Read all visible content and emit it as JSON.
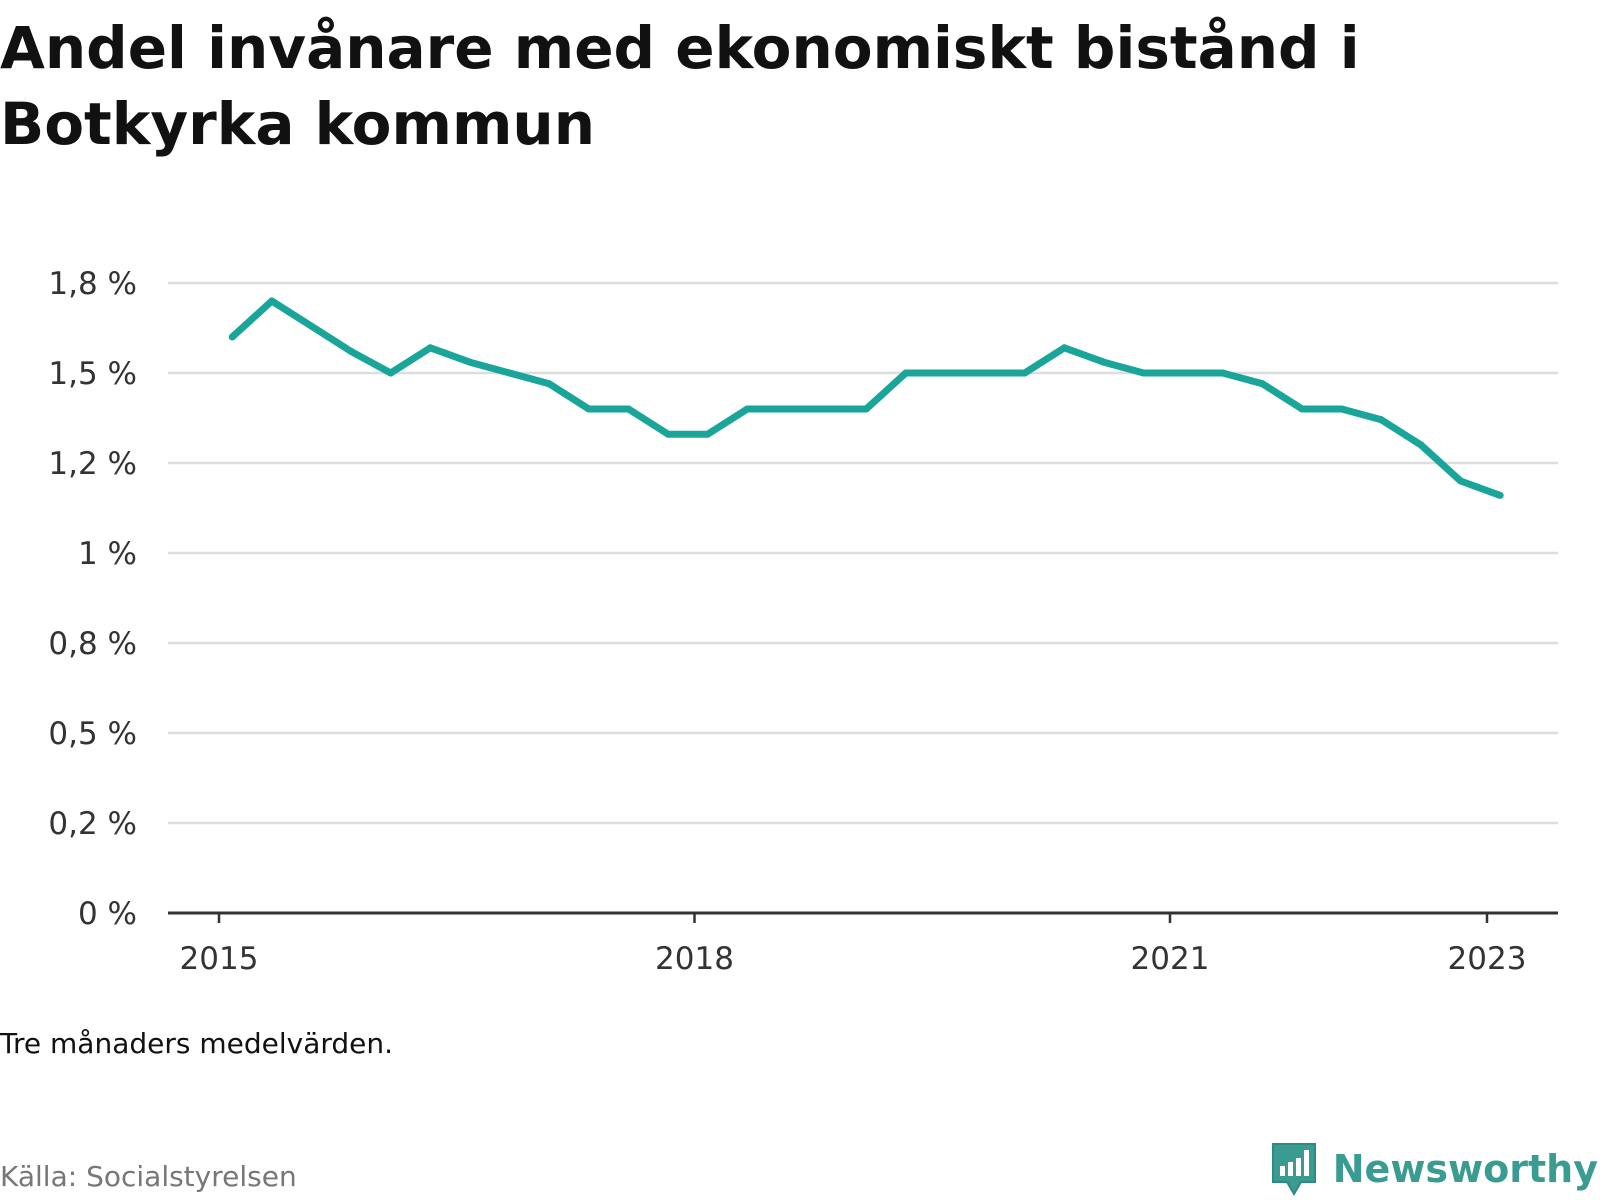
{
  "title": "Andel invånare med ekonomiskt bistånd i Botkyrka kommun",
  "note": "Tre månaders medelvärden.",
  "source": "Källa: Socialstyrelsen",
  "brand": {
    "name": "Newsworthy",
    "icon": "newsworthy-logo-icon"
  },
  "colors": {
    "line": "#1aa59a",
    "grid": "#dddddd",
    "axis": "#333333",
    "brand": "#3a9b93"
  },
  "chart_data": {
    "type": "line",
    "title": "Andel invånare med ekonomiskt bistånd i Botkyrka kommun",
    "xlabel": "",
    "ylabel": "",
    "y_ticks": [
      {
        "value": 0,
        "label": "0 %"
      },
      {
        "value": 0.25,
        "label": "0,2 %"
      },
      {
        "value": 0.5,
        "label": "0,5 %"
      },
      {
        "value": 0.75,
        "label": "0,8 %"
      },
      {
        "value": 1.0,
        "label": "1 %"
      },
      {
        "value": 1.25,
        "label": "1,2 %"
      },
      {
        "value": 1.5,
        "label": "1,5 %"
      },
      {
        "value": 1.75,
        "label": "1,8 %"
      }
    ],
    "x_ticks": [
      {
        "value": "2015-01",
        "label": "2015"
      },
      {
        "value": "2018-01",
        "label": "2018"
      },
      {
        "value": "2021-01",
        "label": "2021"
      },
      {
        "value": "2023-01",
        "label": "2023"
      }
    ],
    "xlim": [
      "2015-01",
      "2023-10"
    ],
    "ylim": [
      0,
      1.75
    ],
    "grid": true,
    "legend": "none",
    "series": [
      {
        "x": [
          "2015-02",
          "2015-05",
          "2015-08",
          "2015-11",
          "2016-02",
          "2016-05",
          "2016-08",
          "2016-11",
          "2017-02",
          "2017-05",
          "2017-08",
          "2017-11",
          "2018-02",
          "2018-05",
          "2018-08",
          "2018-11",
          "2019-02",
          "2019-05",
          "2019-08",
          "2019-11",
          "2020-02",
          "2020-05",
          "2020-08",
          "2020-11",
          "2021-02",
          "2021-05",
          "2021-08",
          "2021-11",
          "2022-02",
          "2022-05",
          "2022-08",
          "2022-11",
          "2023-02"
        ],
        "values": [
          1.6,
          1.7,
          1.63,
          1.56,
          1.5,
          1.57,
          1.53,
          1.5,
          1.47,
          1.4,
          1.4,
          1.33,
          1.33,
          1.4,
          1.4,
          1.4,
          1.4,
          1.5,
          1.5,
          1.5,
          1.5,
          1.57,
          1.53,
          1.5,
          1.5,
          1.5,
          1.47,
          1.4,
          1.4,
          1.37,
          1.3,
          1.2,
          1.16
        ]
      }
    ]
  }
}
